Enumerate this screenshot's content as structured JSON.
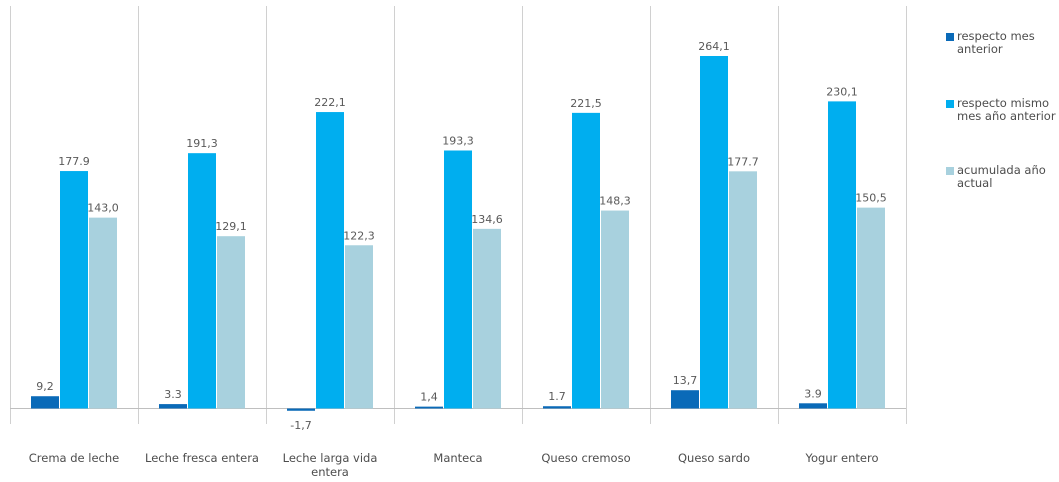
{
  "chart_data": {
    "type": "bar",
    "title": "",
    "xlabel": "",
    "ylabel": "",
    "ylim": [
      -5,
      290
    ],
    "grid": false,
    "legend_position": "right",
    "categories": [
      "Crema de leche",
      "Leche fresca entera",
      "Leche larga vida entera",
      "Manteca",
      "Queso cremoso",
      "Queso sardo",
      "Yogur entero"
    ],
    "category_lines": [
      [
        "Crema de leche"
      ],
      [
        "Leche fresca entera"
      ],
      [
        "Leche larga vida",
        "entera"
      ],
      [
        "Manteca"
      ],
      [
        "Queso cremoso"
      ],
      [
        "Queso sardo"
      ],
      [
        "Yogur entero"
      ]
    ],
    "series": [
      {
        "name": "respecto mes anterior",
        "legend_lines": [
          "respecto mes",
          "anterior"
        ],
        "color": "#0a6ab8",
        "values": [
          9.2,
          3.3,
          -1.7,
          1.4,
          1.7,
          13.7,
          3.9
        ],
        "labels": [
          "9,2",
          "3.3",
          "-1,7",
          "1,4",
          "1.7",
          "13,7",
          "3.9"
        ]
      },
      {
        "name": "respecto mismo mes año anterior",
        "legend_lines": [
          "respecto mismo",
          "mes año anterior"
        ],
        "color": "#00aeef",
        "values": [
          177.9,
          191.3,
          222.1,
          193.3,
          221.5,
          264.1,
          230.1
        ],
        "labels": [
          "177.9",
          "191,3",
          "222,1",
          "193,3",
          "221,5",
          "264,1",
          "230,1"
        ]
      },
      {
        "name": "acumulada año actual",
        "legend_lines": [
          "acumulada año",
          "actual"
        ],
        "color": "#a8d1de",
        "values": [
          143.0,
          129.1,
          122.3,
          134.6,
          148.3,
          177.7,
          150.5
        ],
        "labels": [
          "143,0",
          "129,1",
          "122,3",
          "134,6",
          "148,3",
          "177.7",
          "150,5"
        ]
      }
    ]
  }
}
